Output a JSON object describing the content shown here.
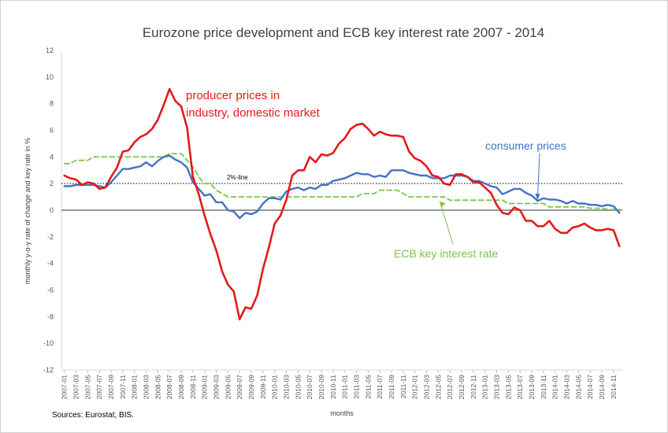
{
  "chart_data": {
    "type": "line",
    "title": "Eurozone price development and ECB key interest rate 2007 - 2014",
    "xlabel": "months",
    "ylabel": "monthly y-o-y rate of change and key rate in %",
    "ylim": [
      -12,
      12
    ],
    "yticks": [
      12,
      10,
      8,
      6,
      4,
      2,
      0,
      -2,
      -4,
      -6,
      -8,
      -10,
      -12
    ],
    "x_range": [
      "2007-01",
      "2014-12"
    ],
    "x_tick_labels": [
      "2007-01",
      "2007-03",
      "2007-05",
      "2007-07",
      "2007-09",
      "2007-11",
      "2008-01",
      "2008-03",
      "2008-05",
      "2008-07",
      "2008-09",
      "2008-11",
      "2009-01",
      "2009-03",
      "2009-05",
      "2009-07",
      "2009-09",
      "2009-11",
      "2010-01",
      "2010-03",
      "2010-05",
      "2010-07",
      "2010-09",
      "2010-11",
      "2011-01",
      "2011-03",
      "2011-05",
      "2011-07",
      "2011-09",
      "2011-11",
      "2012-01",
      "2012-03",
      "2012-05",
      "2012-07",
      "2012-09",
      "2012-11",
      "2013-01",
      "2013-03",
      "2013-05",
      "2013-07",
      "2013-09",
      "2013-11",
      "2014-01",
      "2014-03",
      "2014-05",
      "2014-07",
      "2014-09",
      "2014-11"
    ],
    "grid": false,
    "reference_line": {
      "value": 2,
      "label": "2%-line"
    },
    "series": [
      {
        "name": "producer prices in industry, domestic market",
        "color": "#e31a1c",
        "style": "solid",
        "values": [
          2.6,
          2.4,
          2.3,
          1.9,
          2.1,
          2.0,
          1.6,
          1.7,
          2.5,
          3.2,
          4.4,
          4.5,
          5.1,
          5.5,
          5.7,
          6.1,
          6.8,
          7.9,
          9.1,
          8.2,
          7.8,
          6.2,
          2.5,
          1.2,
          -0.4,
          -1.8,
          -3.0,
          -4.6,
          -5.6,
          -6.1,
          -8.2,
          -7.3,
          -7.4,
          -6.4,
          -4.4,
          -2.8,
          -1.0,
          -0.4,
          0.8,
          2.6,
          3.0,
          3.0,
          4.0,
          3.6,
          4.2,
          4.1,
          4.3,
          5.0,
          5.4,
          6.1,
          6.4,
          6.5,
          6.1,
          5.6,
          5.9,
          5.7,
          5.6,
          5.6,
          5.5,
          4.4,
          3.9,
          3.7,
          3.3,
          2.6,
          2.5,
          2.0,
          1.9,
          2.7,
          2.7,
          2.5,
          2.1,
          2.1,
          1.7,
          1.3,
          0.4,
          -0.2,
          -0.3,
          0.2,
          0.0,
          -0.8,
          -0.8,
          -1.2,
          -1.2,
          -0.8,
          -1.4,
          -1.7,
          -1.7,
          -1.3,
          -1.2,
          -1.0,
          -1.3,
          -1.5,
          -1.5,
          -1.4,
          -1.5,
          -2.7
        ]
      },
      {
        "name": "consumer prices",
        "color": "#4472c4",
        "style": "solid",
        "values": [
          1.8,
          1.8,
          1.9,
          1.9,
          1.9,
          1.9,
          1.8,
          1.7,
          2.1,
          2.6,
          3.1,
          3.1,
          3.2,
          3.3,
          3.6,
          3.3,
          3.7,
          4.0,
          4.1,
          3.8,
          3.6,
          3.2,
          2.1,
          1.6,
          1.1,
          1.2,
          0.6,
          0.6,
          0.0,
          -0.1,
          -0.6,
          -0.2,
          -0.3,
          -0.1,
          0.5,
          0.9,
          0.9,
          0.8,
          1.4,
          1.6,
          1.7,
          1.5,
          1.7,
          1.6,
          1.9,
          1.9,
          2.2,
          2.3,
          2.4,
          2.6,
          2.8,
          2.7,
          2.7,
          2.5,
          2.6,
          2.5,
          3.0,
          3.0,
          3.0,
          2.8,
          2.7,
          2.6,
          2.6,
          2.4,
          2.4,
          2.4,
          2.6,
          2.6,
          2.6,
          2.5,
          2.2,
          2.2,
          2.0,
          1.8,
          1.7,
          1.2,
          1.4,
          1.6,
          1.6,
          1.3,
          1.1,
          0.7,
          0.9,
          0.8,
          0.8,
          0.7,
          0.5,
          0.7,
          0.5,
          0.5,
          0.4,
          0.4,
          0.3,
          0.4,
          0.3,
          -0.2
        ]
      },
      {
        "name": "ECB key interest rate",
        "color": "#7cc34a",
        "style": "dashed",
        "values": [
          3.5,
          3.5,
          3.75,
          3.75,
          3.75,
          4.0,
          4.0,
          4.0,
          4.0,
          4.0,
          4.0,
          4.0,
          4.0,
          4.0,
          4.0,
          4.0,
          4.0,
          4.0,
          4.25,
          4.25,
          4.25,
          3.75,
          3.25,
          2.5,
          2.0,
          2.0,
          1.5,
          1.25,
          1.0,
          1.0,
          1.0,
          1.0,
          1.0,
          1.0,
          1.0,
          1.0,
          1.0,
          1.0,
          1.0,
          1.0,
          1.0,
          1.0,
          1.0,
          1.0,
          1.0,
          1.0,
          1.0,
          1.0,
          1.0,
          1.0,
          1.0,
          1.25,
          1.25,
          1.25,
          1.5,
          1.5,
          1.5,
          1.5,
          1.25,
          1.0,
          1.0,
          1.0,
          1.0,
          1.0,
          1.0,
          1.0,
          0.75,
          0.75,
          0.75,
          0.75,
          0.75,
          0.75,
          0.75,
          0.75,
          0.75,
          0.75,
          0.5,
          0.5,
          0.5,
          0.5,
          0.5,
          0.5,
          0.5,
          0.25,
          0.25,
          0.25,
          0.25,
          0.25,
          0.25,
          0.25,
          0.15,
          0.15,
          0.15,
          0.05,
          0.05,
          0.05
        ]
      }
    ],
    "annotations": {
      "producer_line1": "producer prices in",
      "producer_line2": "industry, domestic market",
      "consumer": "consumer prices",
      "ecb": "ECB key interest rate"
    },
    "source": "Sources: Eurostat, BIS."
  }
}
